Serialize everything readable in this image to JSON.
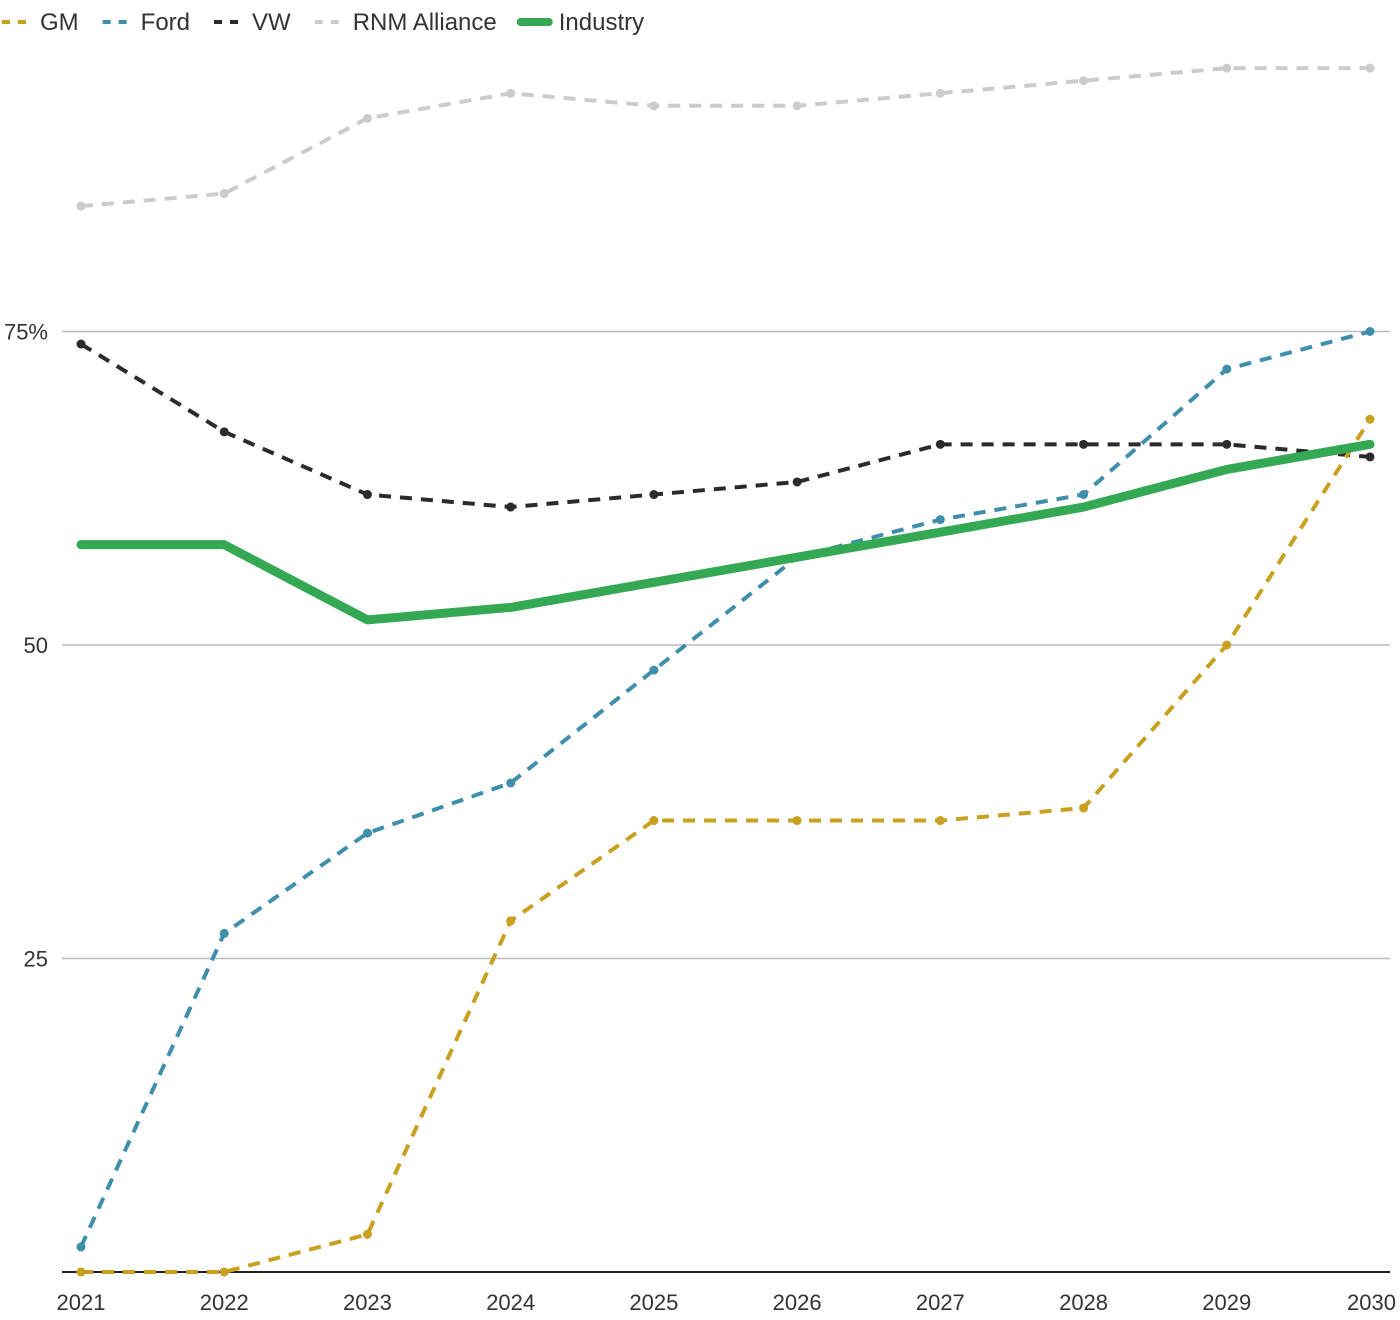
{
  "chart_data": {
    "type": "line",
    "title": "",
    "xlabel": "",
    "ylabel": "",
    "x": [
      "2021",
      "2022",
      "2023",
      "2024",
      "2025",
      "2026",
      "2027",
      "2028",
      "2029",
      "2030"
    ],
    "ylim": [
      0,
      100
    ],
    "y_ticks": [
      {
        "value": 75,
        "label": "75%"
      },
      {
        "value": 50,
        "label": "50"
      },
      {
        "value": 25,
        "label": "25"
      }
    ],
    "grid": true,
    "legend_position": "top-left",
    "series": [
      {
        "name": "GM",
        "color": "#c9a01f",
        "style": "dashed",
        "values": [
          0,
          0,
          3,
          28,
          36,
          36,
          36,
          37,
          50,
          68
        ]
      },
      {
        "name": "Ford",
        "color": "#3f8fac",
        "style": "dashed",
        "values": [
          2,
          27,
          35,
          39,
          48,
          57,
          60,
          62,
          72,
          75
        ]
      },
      {
        "name": "VW",
        "color": "#2b2b2b",
        "style": "dashed",
        "values": [
          74,
          67,
          62,
          61,
          62,
          63,
          66,
          66,
          66,
          65
        ]
      },
      {
        "name": "RNM Alliance",
        "color": "#cccccc",
        "style": "dashed",
        "values": [
          85,
          86,
          92,
          94,
          93,
          93,
          94,
          95,
          96,
          96
        ]
      },
      {
        "name": "Industry",
        "color": "#34a853",
        "style": "solid",
        "values": [
          58,
          58,
          52,
          53,
          55,
          57,
          59,
          61,
          64,
          66
        ]
      }
    ]
  }
}
